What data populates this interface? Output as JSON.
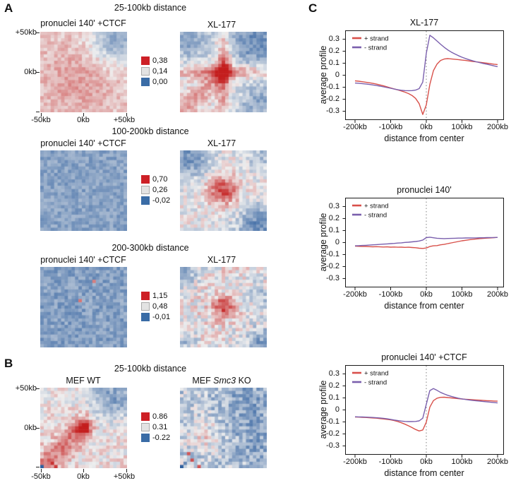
{
  "colors": {
    "legend_red": "#cd2026",
    "legend_gray": "#e3e3e3",
    "legend_blue": "#3a6ca6",
    "heat_red": "#c41e1e",
    "heat_white": "#efefef",
    "heat_blue": "#2f5f9e",
    "line_red": "#d8504a",
    "line_purple": "#7a5fad",
    "axis_stroke": "#1a1a1a",
    "zero_line": "#808080"
  },
  "panel_a": {
    "label": "A",
    "sections": [
      {
        "title": "25-100kb distance",
        "left_title": "pronuclei 140' +CTCF",
        "right_title": "XL-177",
        "legend": [
          "0,38",
          "0,14",
          "0,00"
        ]
      },
      {
        "title": "100-200kb distance",
        "left_title": "pronuclei 140' +CTCF",
        "right_title": "XL-177",
        "legend": [
          "0,70",
          "0,26",
          "-0,02"
        ]
      },
      {
        "title": "200-300kb distance",
        "left_title": "pronuclei 140' +CTCF",
        "right_title": "XL-177",
        "legend": [
          "1,15",
          "0,48",
          "-0,01"
        ]
      }
    ]
  },
  "panel_b": {
    "label": "B",
    "title": "25-100kb distance",
    "left_title": "MEF WT",
    "right_title": "MEF Smc3 KO",
    "right_title_parts": [
      "MEF ",
      "Smc3",
      " KO"
    ],
    "legend": [
      "0.86",
      "0.31",
      "-0.22"
    ]
  },
  "panel_c": {
    "label": "C"
  },
  "heat_axis": {
    "top_label": "+50kb",
    "mid_label": "0kb",
    "bottom_left": "-50kb",
    "bottom_mid": "0kb",
    "bottom_right": "+50kb"
  },
  "chart_data": [
    {
      "type": "heatmap",
      "panel": "A",
      "section": "25-100kb distance",
      "title": "pronuclei 140' +CTCF",
      "grid": [
        25,
        25
      ],
      "x_range_kb": [
        -50,
        50
      ],
      "y_range_kb": [
        -50,
        50
      ],
      "scale": {
        "max": "0,38",
        "mid": "0,14",
        "min": "0,00"
      },
      "pattern": {
        "seed": 11,
        "base": 0.16,
        "noise": 0.15,
        "features": [
          {
            "type": "corner",
            "x": -0.15,
            "y": 0.25,
            "amp": 0.2,
            "sigma": 0.6
          },
          {
            "type": "corner",
            "x": 0.8,
            "y": -0.8,
            "amp": -0.62,
            "sigma": 0.42
          }
        ],
        "specks": []
      }
    },
    {
      "type": "heatmap",
      "panel": "A",
      "section": "25-100kb distance",
      "title": "XL-177",
      "grid": [
        25,
        25
      ],
      "x_range_kb": [
        -50,
        50
      ],
      "y_range_kb": [
        -50,
        50
      ],
      "scale": {
        "max": "0,38",
        "mid": "0,14",
        "min": "0,00"
      },
      "pattern": {
        "seed": 22,
        "base": -0.02,
        "noise": 0.2,
        "features": [
          {
            "type": "cross",
            "amp": 0.5,
            "w": 0.12
          },
          {
            "type": "blob",
            "amp": 0.55,
            "sigma": 0.13
          },
          {
            "type": "diag",
            "amp": 0.35,
            "w": 0.25
          },
          {
            "type": "corner",
            "x": 0.75,
            "y": -0.75,
            "amp": -0.65,
            "sigma": 0.42
          },
          {
            "type": "corner",
            "x": -0.8,
            "y": -0.8,
            "amp": -0.45,
            "sigma": 0.35
          },
          {
            "type": "corner",
            "x": 0.85,
            "y": 0.8,
            "amp": -0.45,
            "sigma": 0.35
          }
        ],
        "specks": []
      }
    },
    {
      "type": "heatmap",
      "panel": "A",
      "section": "100-200kb distance",
      "title": "pronuclei 140' +CTCF",
      "grid": [
        25,
        25
      ],
      "x_range_kb": [
        -50,
        50
      ],
      "y_range_kb": [
        -50,
        50
      ],
      "scale": {
        "max": "0,70",
        "mid": "0,26",
        "min": "-0,02"
      },
      "pattern": {
        "seed": 33,
        "base": -0.5,
        "noise": 0.17,
        "features": [],
        "specks": []
      }
    },
    {
      "type": "heatmap",
      "panel": "A",
      "section": "100-200kb distance",
      "title": "XL-177",
      "grid": [
        25,
        25
      ],
      "x_range_kb": [
        -50,
        50
      ],
      "y_range_kb": [
        -50,
        50
      ],
      "scale": {
        "max": "0,70",
        "mid": "0,26",
        "min": "-0,02"
      },
      "pattern": {
        "seed": 44,
        "base": -0.02,
        "noise": 0.22,
        "features": [
          {
            "type": "blob",
            "amp": 0.8,
            "sigma": 0.25
          },
          {
            "type": "corner",
            "x": -0.85,
            "y": -0.85,
            "amp": -0.6,
            "sigma": 0.35
          },
          {
            "type": "corner",
            "x": 0.85,
            "y": 0.9,
            "amp": -0.65,
            "sigma": 0.35
          },
          {
            "type": "corner",
            "x": 0.9,
            "y": -0.9,
            "amp": -0.3,
            "sigma": 0.25
          }
        ],
        "specks": []
      }
    },
    {
      "type": "heatmap",
      "panel": "A",
      "section": "200-300kb distance",
      "title": "pronuclei 140' +CTCF",
      "grid": [
        25,
        25
      ],
      "x_range_kb": [
        -50,
        50
      ],
      "y_range_kb": [
        -50,
        50
      ],
      "scale": {
        "max": "1,15",
        "mid": "0,48",
        "min": "-0,01"
      },
      "pattern": {
        "seed": 55,
        "base": -0.52,
        "noise": 0.2,
        "features": [],
        "specks": [
          {
            "i": 4,
            "j": 15,
            "amp": 0.5
          },
          {
            "i": 10,
            "j": 11,
            "amp": 0.55
          }
        ]
      }
    },
    {
      "type": "heatmap",
      "panel": "A",
      "section": "200-300kb distance",
      "title": "XL-177",
      "grid": [
        25,
        25
      ],
      "x_range_kb": [
        -50,
        50
      ],
      "y_range_kb": [
        -50,
        50
      ],
      "scale": {
        "max": "1,15",
        "mid": "0,48",
        "min": "-0,01"
      },
      "pattern": {
        "seed": 66,
        "base": 0.02,
        "noise": 0.28,
        "features": [
          {
            "type": "blob",
            "amp": 0.7,
            "sigma": 0.2
          },
          {
            "type": "corner",
            "x": -0.9,
            "y": -0.9,
            "amp": -0.35,
            "sigma": 0.25
          },
          {
            "type": "corner",
            "x": 0.9,
            "y": 0.9,
            "amp": -0.5,
            "sigma": 0.3
          },
          {
            "type": "corner",
            "x": -0.9,
            "y": 0.9,
            "amp": -0.3,
            "sigma": 0.2
          },
          {
            "type": "corner",
            "x": 0.9,
            "y": -0.3,
            "amp": -0.25,
            "sigma": 0.25
          }
        ],
        "specks": []
      }
    },
    {
      "type": "heatmap",
      "panel": "B",
      "section": "25-100kb distance",
      "title": "MEF WT",
      "grid": [
        25,
        25
      ],
      "x_range_kb": [
        -50,
        50
      ],
      "y_range_kb": [
        -50,
        50
      ],
      "scale": {
        "max": "0.86",
        "mid": "0.31",
        "min": "-0.22"
      },
      "pattern": {
        "seed": 77,
        "base": 0.05,
        "noise": 0.22,
        "features": [
          {
            "type": "blob",
            "amp": 0.85,
            "sigma": 0.14
          },
          {
            "type": "diag",
            "amp": 0.45,
            "w": 0.28
          },
          {
            "type": "corner",
            "x": 0.7,
            "y": -0.8,
            "amp": -0.55,
            "sigma": 0.42
          }
        ],
        "specks": [
          {
            "i": 24,
            "j": 0,
            "amp": -1.0
          },
          {
            "i": 23,
            "j": 3,
            "amp": 0.9
          },
          {
            "i": 24,
            "j": 4,
            "amp": 0.85
          }
        ]
      }
    },
    {
      "type": "heatmap",
      "panel": "B",
      "section": "25-100kb distance",
      "title": "MEF Smc3 KO",
      "title_parts": [
        "MEF ",
        "Smc3",
        " KO"
      ],
      "grid": [
        25,
        25
      ],
      "x_range_kb": [
        -50,
        50
      ],
      "y_range_kb": [
        -50,
        50
      ],
      "scale": {
        "max": "0.86",
        "mid": "0.31",
        "min": "-0.22"
      },
      "pattern": {
        "seed": 88,
        "base": -0.22,
        "noise": 0.3,
        "features": [
          {
            "type": "corner",
            "x": 0.6,
            "y": -0.6,
            "amp": -0.3,
            "sigma": 0.5
          },
          {
            "type": "corner",
            "x": 0.8,
            "y": 0.5,
            "amp": -0.25,
            "sigma": 0.4
          },
          {
            "type": "corner",
            "x": -0.5,
            "y": 0.15,
            "amp": 0.32,
            "sigma": 0.28
          }
        ],
        "specks": [
          {
            "i": 24,
            "j": 0,
            "amp": -1.0
          },
          {
            "i": 23,
            "j": 1,
            "amp": -0.7
          },
          {
            "i": 22,
            "j": 3,
            "amp": 0.75
          },
          {
            "i": 20,
            "j": 2,
            "amp": 0.7
          },
          {
            "i": 24,
            "j": 5,
            "amp": 0.7
          }
        ]
      }
    },
    {
      "type": "line",
      "panel": "C",
      "title": "XL-177",
      "xlabel": "distance from center",
      "ylabel": "average profile",
      "xlim_kb": [
        -200,
        200
      ],
      "ylim": [
        -0.35,
        0.35
      ],
      "xtick_values": [
        -200,
        -100,
        0,
        100,
        200
      ],
      "xtick_labels": [
        "-200kb",
        "-100kb",
        "0kb",
        "100kb",
        "200kb"
      ],
      "ytick_values": [
        0.3,
        0.2,
        0.1,
        0,
        -0.1,
        -0.2,
        -0.3
      ],
      "ytick_labels": [
        "0.3",
        "0.2",
        "0.1",
        "0",
        "-0.1",
        "-0.2",
        "-0.3"
      ],
      "legend_position": "top-left",
      "zero_line": true,
      "x": [
        -200,
        -190,
        -180,
        -170,
        -160,
        -150,
        -140,
        -130,
        -120,
        -110,
        -100,
        -90,
        -80,
        -70,
        -60,
        -50,
        -40,
        -30,
        -20,
        -10,
        0,
        10,
        20,
        30,
        40,
        50,
        60,
        70,
        80,
        90,
        100,
        110,
        120,
        130,
        140,
        150,
        160,
        170,
        180,
        190,
        200
      ],
      "series": [
        {
          "name": "+ strand",
          "color_key": "line_red",
          "y": [
            -0.05,
            -0.053,
            -0.057,
            -0.061,
            -0.066,
            -0.071,
            -0.077,
            -0.084,
            -0.092,
            -0.1,
            -0.109,
            -0.117,
            -0.125,
            -0.134,
            -0.144,
            -0.156,
            -0.172,
            -0.196,
            -0.24,
            -0.33,
            -0.25,
            -0.08,
            0.035,
            0.09,
            0.12,
            0.132,
            0.135,
            0.133,
            0.13,
            0.127,
            0.123,
            0.12,
            0.116,
            0.112,
            0.108,
            0.105,
            0.101,
            0.097,
            0.093,
            0.089,
            0.086
          ]
        },
        {
          "name": "- strand",
          "color_key": "line_purple",
          "y": [
            -0.068,
            -0.07,
            -0.073,
            -0.076,
            -0.08,
            -0.084,
            -0.089,
            -0.094,
            -0.1,
            -0.106,
            -0.112,
            -0.118,
            -0.124,
            -0.128,
            -0.131,
            -0.132,
            -0.131,
            -0.127,
            -0.115,
            -0.06,
            0.18,
            0.33,
            0.308,
            0.282,
            0.255,
            0.23,
            0.208,
            0.19,
            0.174,
            0.16,
            0.147,
            0.136,
            0.126,
            0.117,
            0.109,
            0.102,
            0.095,
            0.089,
            0.082,
            0.075,
            0.068
          ]
        }
      ]
    },
    {
      "type": "line",
      "panel": "C",
      "title": "pronuclei 140'",
      "xlabel": "distance from center",
      "ylabel": "average profile",
      "xlim_kb": [
        -200,
        200
      ],
      "ylim": [
        -0.35,
        0.35
      ],
      "xtick_values": [
        -200,
        -100,
        0,
        100,
        200
      ],
      "xtick_labels": [
        "-200kb",
        "-100kb",
        "0kb",
        "100kb",
        "200kb"
      ],
      "ytick_values": [
        0.3,
        0.2,
        0.1,
        0,
        -0.1,
        -0.2,
        -0.3
      ],
      "ytick_labels": [
        "0.3",
        "0.2",
        "0.1",
        "0",
        "-0.1",
        "-0.2",
        "-0.3"
      ],
      "legend_position": "top-left",
      "zero_line": true,
      "x": [
        -200,
        -190,
        -180,
        -170,
        -160,
        -150,
        -140,
        -130,
        -120,
        -110,
        -100,
        -90,
        -80,
        -70,
        -60,
        -50,
        -40,
        -30,
        -20,
        -10,
        0,
        10,
        20,
        30,
        40,
        50,
        60,
        70,
        80,
        90,
        100,
        110,
        120,
        130,
        140,
        150,
        160,
        170,
        180,
        190,
        200
      ],
      "series": [
        {
          "name": "+ strand",
          "color_key": "line_red",
          "y": [
            -0.033,
            -0.034,
            -0.036,
            -0.035,
            -0.037,
            -0.038,
            -0.037,
            -0.039,
            -0.04,
            -0.039,
            -0.041,
            -0.04,
            -0.042,
            -0.041,
            -0.043,
            -0.042,
            -0.044,
            -0.046,
            -0.05,
            -0.052,
            -0.048,
            -0.036,
            -0.03,
            -0.028,
            -0.022,
            -0.018,
            -0.012,
            -0.006,
            0.0,
            0.006,
            0.012,
            0.016,
            0.02,
            0.024,
            0.027,
            0.03,
            0.032,
            0.034,
            0.036,
            0.038,
            0.04
          ]
        },
        {
          "name": "- strand",
          "color_key": "line_purple",
          "y": [
            -0.03,
            -0.029,
            -0.027,
            -0.026,
            -0.024,
            -0.022,
            -0.02,
            -0.018,
            -0.016,
            -0.014,
            -0.012,
            -0.01,
            -0.007,
            -0.005,
            -0.002,
            0.0,
            0.003,
            0.006,
            0.01,
            0.018,
            0.038,
            0.042,
            0.037,
            0.033,
            0.031,
            0.03,
            0.031,
            0.032,
            0.033,
            0.034,
            0.034,
            0.035,
            0.035,
            0.036,
            0.036,
            0.037,
            0.037,
            0.038,
            0.039,
            0.039,
            0.04
          ]
        }
      ]
    },
    {
      "type": "line",
      "panel": "C",
      "title": "pronuclei 140' +CTCF",
      "xlabel": "distance from center",
      "ylabel": "average profile",
      "xlim_kb": [
        -200,
        200
      ],
      "ylim": [
        -0.35,
        0.35
      ],
      "xtick_values": [
        -200,
        -100,
        0,
        100,
        200
      ],
      "xtick_labels": [
        "-200kb",
        "-100kb",
        "0kb",
        "100kb",
        "200kb"
      ],
      "ytick_values": [
        0.3,
        0.2,
        0.1,
        0,
        -0.1,
        -0.2,
        -0.3
      ],
      "ytick_labels": [
        "0.3",
        "0.2",
        "0.1",
        "0",
        "-0.1",
        "-0.2",
        "-0.3"
      ],
      "legend_position": "top-left",
      "zero_line": true,
      "x": [
        -200,
        -190,
        -180,
        -170,
        -160,
        -150,
        -140,
        -130,
        -120,
        -110,
        -100,
        -90,
        -80,
        -70,
        -60,
        -50,
        -40,
        -30,
        -20,
        -10,
        0,
        10,
        20,
        30,
        40,
        50,
        60,
        70,
        80,
        90,
        100,
        110,
        120,
        130,
        140,
        150,
        160,
        170,
        180,
        190,
        200
      ],
      "series": [
        {
          "name": "+ strand",
          "color_key": "line_red",
          "y": [
            -0.062,
            -0.063,
            -0.065,
            -0.066,
            -0.068,
            -0.07,
            -0.072,
            -0.075,
            -0.078,
            -0.082,
            -0.086,
            -0.092,
            -0.1,
            -0.11,
            -0.122,
            -0.135,
            -0.15,
            -0.166,
            -0.178,
            -0.17,
            -0.105,
            0.02,
            0.075,
            0.095,
            0.102,
            0.103,
            0.1,
            0.097,
            0.094,
            0.091,
            0.088,
            0.086,
            0.084,
            0.082,
            0.08,
            0.078,
            0.076,
            0.074,
            0.073,
            0.071,
            0.07
          ]
        },
        {
          "name": "- strand",
          "color_key": "line_purple",
          "y": [
            -0.06,
            -0.061,
            -0.062,
            -0.063,
            -0.064,
            -0.066,
            -0.068,
            -0.07,
            -0.073,
            -0.077,
            -0.082,
            -0.087,
            -0.092,
            -0.096,
            -0.099,
            -0.1,
            -0.1,
            -0.099,
            -0.094,
            -0.072,
            0.045,
            0.158,
            0.175,
            0.16,
            0.143,
            0.13,
            0.119,
            0.11,
            0.102,
            0.095,
            0.089,
            0.084,
            0.08,
            0.076,
            0.073,
            0.07,
            0.067,
            0.064,
            0.061,
            0.058,
            0.055
          ]
        }
      ]
    }
  ]
}
